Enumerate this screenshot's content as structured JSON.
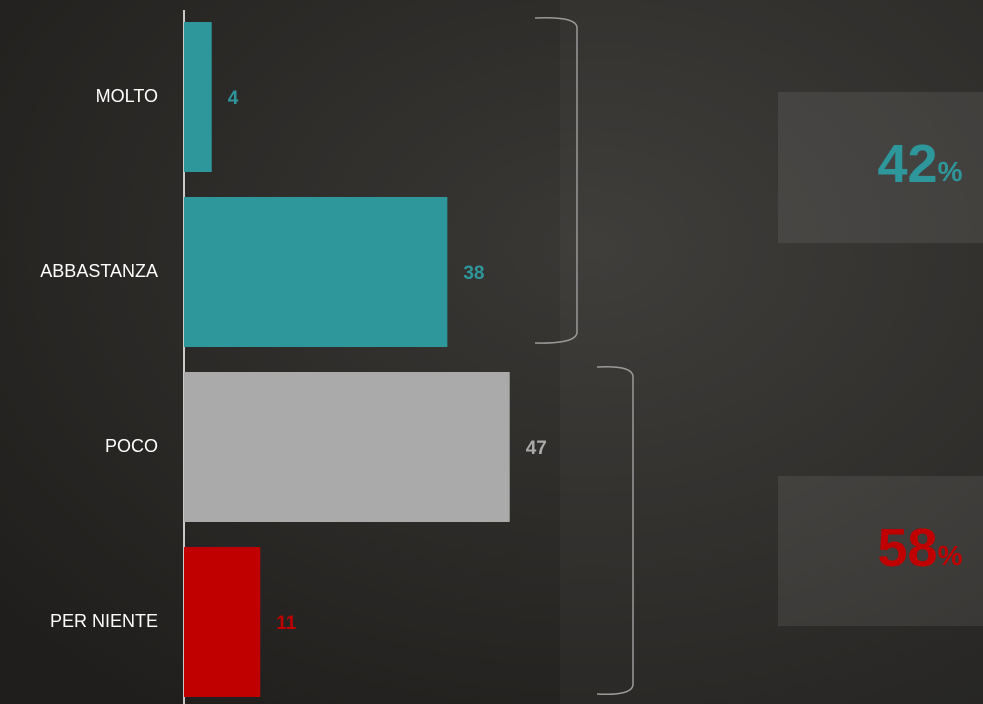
{
  "chart_data": {
    "type": "bar",
    "orientation": "horizontal",
    "categories": [
      "MOLTO",
      "ABBASTANZA",
      "POCO",
      "PER NIENTE"
    ],
    "values": [
      4,
      38,
      47,
      11
    ],
    "colors": [
      "#2e979c",
      "#2e979c",
      "#aaaaaa",
      "#c00000"
    ],
    "summaries": [
      {
        "value": 42,
        "unit": "%",
        "color": "#2e979c"
      },
      {
        "value": 58,
        "unit": "%",
        "color": "#c00000"
      }
    ]
  }
}
